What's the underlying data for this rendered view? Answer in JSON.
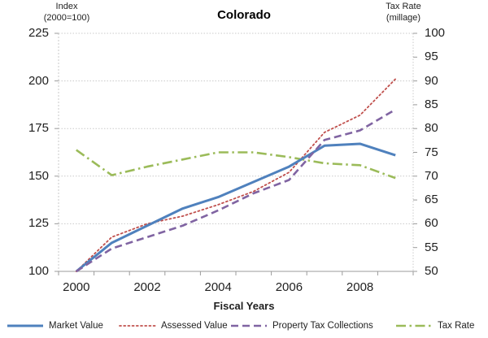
{
  "title": "Colorado",
  "left_axis": {
    "header_line1": "Index",
    "header_line2": "(2000=100)",
    "ticks": [
      225,
      200,
      175,
      150,
      125,
      100
    ],
    "min": 100,
    "max": 225
  },
  "right_axis": {
    "header_line1": "Tax Rate",
    "header_line2": "(millage)",
    "ticks": [
      100,
      95,
      90,
      85,
      80,
      75,
      70,
      65,
      60,
      55,
      50
    ],
    "min": 50,
    "max": 100
  },
  "x_axis": {
    "label": "Fiscal Years",
    "tick_labels": [
      "2000",
      "2002",
      "2004",
      "2006",
      "2008"
    ]
  },
  "chart_data": {
    "type": "line",
    "title": "Colorado",
    "xlabel": "Fiscal Years",
    "ylabel_left": "Index (2000=100)",
    "ylabel_right": "Tax Rate (millage)",
    "left_ylim": [
      100,
      225
    ],
    "right_ylim": [
      50,
      100
    ],
    "grid": true,
    "legend_position": "bottom",
    "x": [
      2000,
      2001,
      2002,
      2003,
      2004,
      2005,
      2006,
      2007,
      2008,
      2009
    ],
    "series": [
      {
        "name": "Market Value",
        "axis": "left",
        "color": "#4F81BD",
        "style": "solid",
        "values": [
          100,
          115,
          124,
          133,
          139,
          147,
          155,
          166,
          167,
          161
        ]
      },
      {
        "name": "Assessed Value",
        "axis": "left",
        "color": "#C0504D",
        "style": "dotted",
        "values": [
          100,
          118,
          125,
          129,
          135,
          142,
          152,
          173,
          182,
          201
        ]
      },
      {
        "name": "Property Tax Collections",
        "axis": "left",
        "color": "#8064A2",
        "style": "dashed",
        "values": [
          100,
          112,
          118,
          124,
          132,
          141,
          148,
          169,
          174,
          185
        ]
      },
      {
        "name": "Tax Rate",
        "axis": "right",
        "color": "#9BBB59",
        "style": "dashdot",
        "values": [
          75.5,
          70.2,
          72,
          73.5,
          75,
          75,
          74,
          72.7,
          72.3,
          69.6
        ]
      }
    ]
  },
  "legend": {
    "items": [
      {
        "label": "Market Value",
        "color": "#4F81BD",
        "style": "solid"
      },
      {
        "label": "Assessed Value",
        "color": "#C0504D",
        "style": "dotted"
      },
      {
        "label": "Property Tax Collections",
        "color": "#8064A2",
        "style": "dashed"
      },
      {
        "label": "Tax Rate",
        "color": "#9BBB59",
        "style": "dashdot"
      }
    ]
  },
  "colors": {
    "gridline": "#C9C9C9",
    "axis": "#9B9B9B",
    "text": "#1F1F1F"
  }
}
